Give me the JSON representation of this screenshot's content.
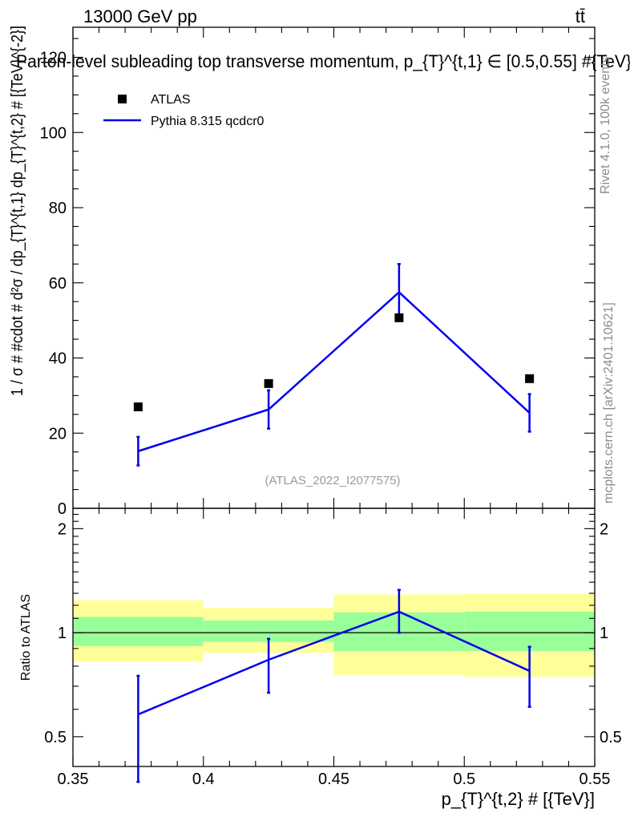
{
  "header": {
    "energy_label": "13000 GeV pp",
    "process_label": "tt̄",
    "plot_title": "Parton-level subleading top transverse momentum, p_{T}^{t,1} ∈ [0.5,0.55] #{TeV}"
  },
  "side_labels": {
    "rivet": "Rivet 4.1.0,  100k events",
    "mcplots": "mcplots.cern.ch [arXiv:2401.10621]"
  },
  "reference_label": "(ATLAS_2022_I2077575)",
  "legend": {
    "data_label": "ATLAS",
    "mc_label": "Pythia 8.315 qcdcr0",
    "mc_color": "#0000ee"
  },
  "colors": {
    "mc": "#0000ee",
    "band_inner": "#99ff99",
    "band_outer": "#ffff99",
    "data": "#000000"
  },
  "chart_data": [
    {
      "type": "scatter",
      "panel": "main",
      "ylabel": "1 / σ # #cdot # d²σ / dp_{T}^{t,1} dp_{T}^{t,2} # [{TeV}^{-2}]",
      "xlim": [
        0.35,
        0.55
      ],
      "ylim": [
        0,
        128
      ],
      "x_ticks": [
        0.35,
        0.4,
        0.45,
        0.5,
        0.55
      ],
      "y_ticks": [
        0,
        20,
        40,
        60,
        80,
        100,
        120
      ],
      "y_tick_labels": [
        "0",
        "20",
        "40",
        "60",
        "80",
        "100",
        "120"
      ],
      "bins": [
        [
          0.35,
          0.4
        ],
        [
          0.4,
          0.45
        ],
        [
          0.45,
          0.5
        ],
        [
          0.5,
          0.55
        ]
      ],
      "series": [
        {
          "name": "ATLAS",
          "kind": "markers",
          "x": [
            0.375,
            0.425,
            0.475,
            0.525
          ],
          "values": [
            27.0,
            33.2,
            50.7,
            34.5
          ]
        },
        {
          "name": "Pythia 8.315 qcdcr0",
          "kind": "line",
          "x": [
            0.375,
            0.425,
            0.475,
            0.525
          ],
          "values": [
            15.2,
            26.3,
            57.5,
            25.4
          ],
          "err_low": [
            3.8,
            5.1,
            7.5,
            5.0
          ],
          "err_high": [
            3.8,
            5.1,
            7.5,
            5.0
          ]
        }
      ]
    },
    {
      "type": "line",
      "panel": "ratio",
      "ylabel": "Ratio to ATLAS",
      "xlabel": "p_{T}^{t,2} # [{TeV}]",
      "xlim": [
        0.35,
        0.55
      ],
      "ylim": [
        0.41,
        2.29
      ],
      "x_ticks": [
        0.35,
        0.4,
        0.45,
        0.5,
        0.55
      ],
      "x_tick_labels": [
        "0.35",
        "0.4",
        "0.45",
        "0.5",
        "0.55"
      ],
      "y_ticks": [
        0.5,
        1,
        2
      ],
      "y_tick_labels": [
        "0.5",
        "1",
        "2"
      ],
      "bands": [
        {
          "x": [
            0.35,
            0.4
          ],
          "inner": [
            0.915,
            1.11
          ],
          "outer": [
            0.825,
            1.24
          ]
        },
        {
          "x": [
            0.4,
            0.45
          ],
          "inner": [
            0.94,
            1.085
          ],
          "outer": [
            0.875,
            1.18
          ]
        },
        {
          "x": [
            0.45,
            0.5
          ],
          "inner": [
            0.885,
            1.145
          ],
          "outer": [
            0.755,
            1.29
          ]
        },
        {
          "x": [
            0.5,
            0.55
          ],
          "inner": [
            0.885,
            1.15
          ],
          "outer": [
            0.745,
            1.3
          ]
        }
      ],
      "series": [
        {
          "name": "Pythia 8.315 qcdcr0",
          "x": [
            0.375,
            0.425,
            0.475,
            0.525
          ],
          "values": [
            0.58,
            0.835,
            1.15,
            0.775
          ],
          "err_low": [
            0.21,
            0.165,
            0.15,
            0.165
          ],
          "err_high": [
            0.17,
            0.125,
            0.18,
            0.135
          ]
        }
      ]
    }
  ]
}
